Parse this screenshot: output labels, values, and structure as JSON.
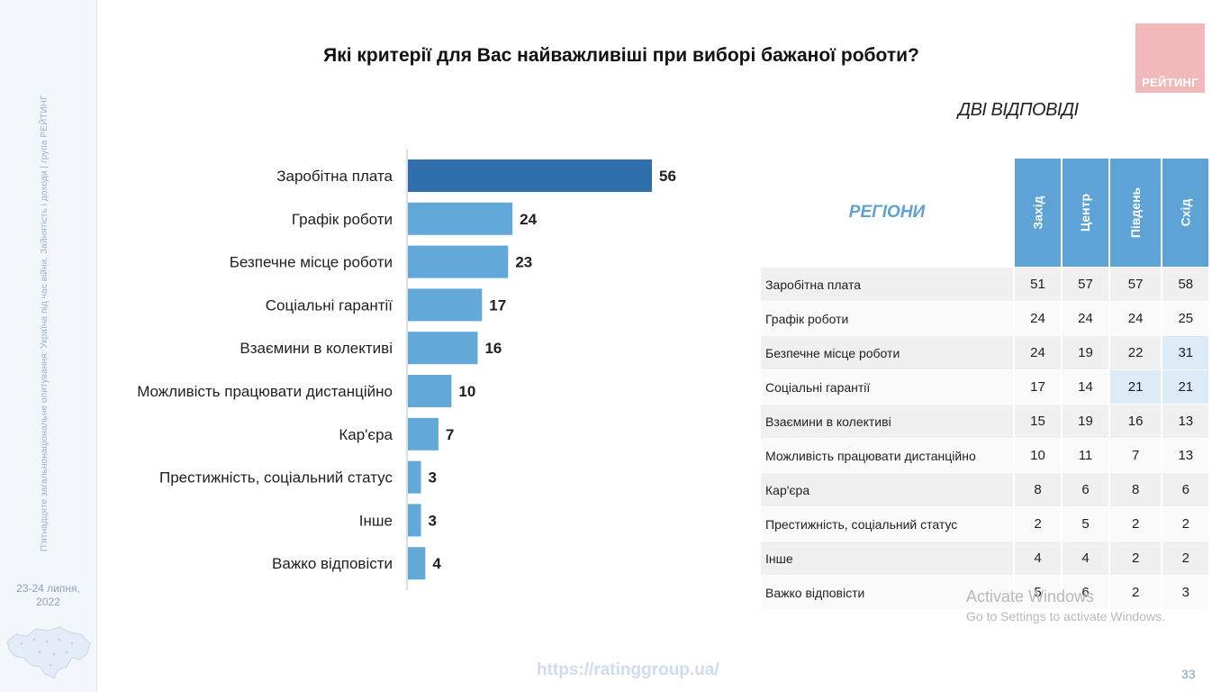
{
  "sidebar": {
    "vertical_text": "П'ятнадцяте загальнонаціональне опитування: Україна під час війни. Зайнятість і доходи | група РЕЙТИНГ",
    "date_line1": "23-24 липня,",
    "date_line2": "2022",
    "map_icon": "ukraine-map-icon"
  },
  "header": {
    "title": "Які критерії для Вас найважливіші при виборі бажаної роботи?",
    "logo_text": "РЕЙТИНГ",
    "subtitle": "ДВІ ВІДПОВІДІ"
  },
  "colors": {
    "bar_primary": "#2e6fac",
    "bar_secondary": "#62a8d8",
    "header_blue": "#5da3d6",
    "highlight": "#dcebf6"
  },
  "chart_data": {
    "type": "bar",
    "orientation": "horizontal",
    "categories": [
      "Заробітна плата",
      "Графік роботи",
      "Безпечне місце роботи",
      "Соціальні гарантії",
      "Взаємини в колективі",
      "Можливість працювати дистанційно",
      "Кар'єра",
      "Престижність, соціальний статус",
      "Інше",
      "Важко відповісти"
    ],
    "values": [
      56,
      24,
      23,
      17,
      16,
      10,
      7,
      3,
      3,
      4
    ],
    "title": "Які критерії для Вас найважливіші при виборі бажаної роботи?",
    "grid": false,
    "data_labels": true
  },
  "table": {
    "corner_label": "РЕГІОНИ",
    "columns": [
      "Захід",
      "Центр",
      "Південь",
      "Схід"
    ],
    "rows": [
      {
        "label": "Заробітна плата",
        "values": [
          "51",
          "57",
          "57",
          "58"
        ],
        "highlight": [
          false,
          false,
          false,
          false
        ]
      },
      {
        "label": "Графік роботи",
        "values": [
          "24",
          "24",
          "24",
          "25"
        ],
        "highlight": [
          false,
          false,
          false,
          false
        ]
      },
      {
        "label": "Безпечне місце роботи",
        "values": [
          "24",
          "19",
          "22",
          "31"
        ],
        "highlight": [
          false,
          false,
          false,
          true
        ]
      },
      {
        "label": "Соціальні гарантії",
        "values": [
          "17",
          "14",
          "21",
          "21"
        ],
        "highlight": [
          false,
          false,
          true,
          true
        ]
      },
      {
        "label": "Взаємини в колективі",
        "values": [
          "15",
          "19",
          "16",
          "13"
        ],
        "highlight": [
          false,
          false,
          false,
          false
        ]
      },
      {
        "label": "Можливість працювати дистанційно",
        "values": [
          "10",
          "11",
          "7",
          "13"
        ],
        "highlight": [
          false,
          false,
          false,
          false
        ]
      },
      {
        "label": "Кар'єра",
        "values": [
          "8",
          "6",
          "8",
          "6"
        ],
        "highlight": [
          false,
          false,
          false,
          false
        ]
      },
      {
        "label": "Престижність, соціальний статус",
        "values": [
          "2",
          "5",
          "2",
          "2"
        ],
        "highlight": [
          false,
          false,
          false,
          false
        ]
      },
      {
        "label": "Інше",
        "values": [
          "4",
          "4",
          "2",
          "2"
        ],
        "highlight": [
          false,
          false,
          false,
          false
        ]
      },
      {
        "label": "Важко відповісти",
        "values": [
          "5",
          "6",
          "2",
          "3"
        ],
        "highlight": [
          false,
          false,
          false,
          false
        ]
      }
    ]
  },
  "footer": {
    "url": "https://ratinggroup.ua/",
    "page_number": "33",
    "watermark_line1": "Activate Windows",
    "watermark_line2": "Go to Settings to activate Windows."
  }
}
